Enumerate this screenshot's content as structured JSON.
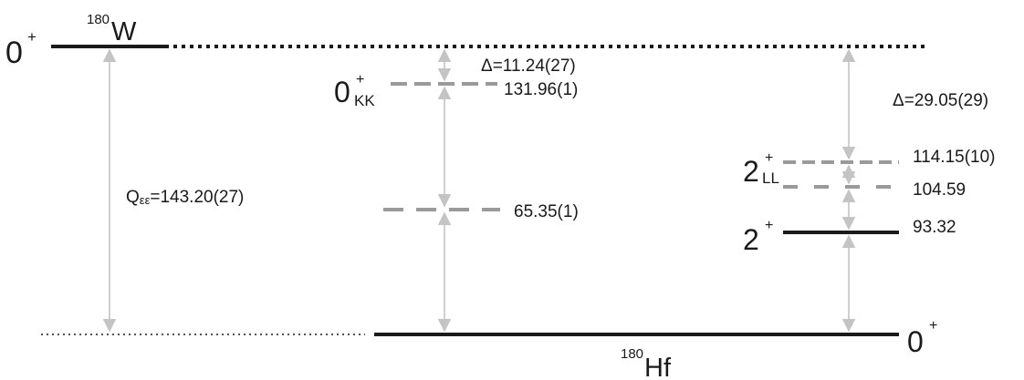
{
  "nuclei": {
    "parent": {
      "mass": "180",
      "symbol": "W",
      "level_label": "0",
      "level_sup": "+"
    },
    "daughter": {
      "mass": "180",
      "symbol": "Hf",
      "ground_label": "0",
      "ground_sup": "+"
    }
  },
  "q_value": {
    "prefix": "Q",
    "sub": "εε",
    "value": "=143.20(27)"
  },
  "levels": {
    "kk": {
      "label": "0",
      "sup": "+",
      "sub": "KK",
      "energy": "131.96(1)",
      "energy_kev": 131.96
    },
    "mid": {
      "energy": "65.35(1)",
      "energy_kev": 65.35
    },
    "ll": {
      "label": "2",
      "sup": "+",
      "sub": "LL",
      "energy": "114.15(10)",
      "energy_kev": 114.15
    },
    "l2": {
      "energy": "104.59",
      "energy_kev": 104.59
    },
    "first_excited": {
      "label": "2",
      "sup": "+",
      "energy": "93.32",
      "energy_kev": 93.32
    }
  },
  "deltas": {
    "kk": "Δ=11.24(27)",
    "ll": "Δ=29.05(29)"
  },
  "colors": {
    "line_dark": "#1a1a1a",
    "line_grey": "#9a9a9a",
    "arrow": "#c4c4c4"
  }
}
